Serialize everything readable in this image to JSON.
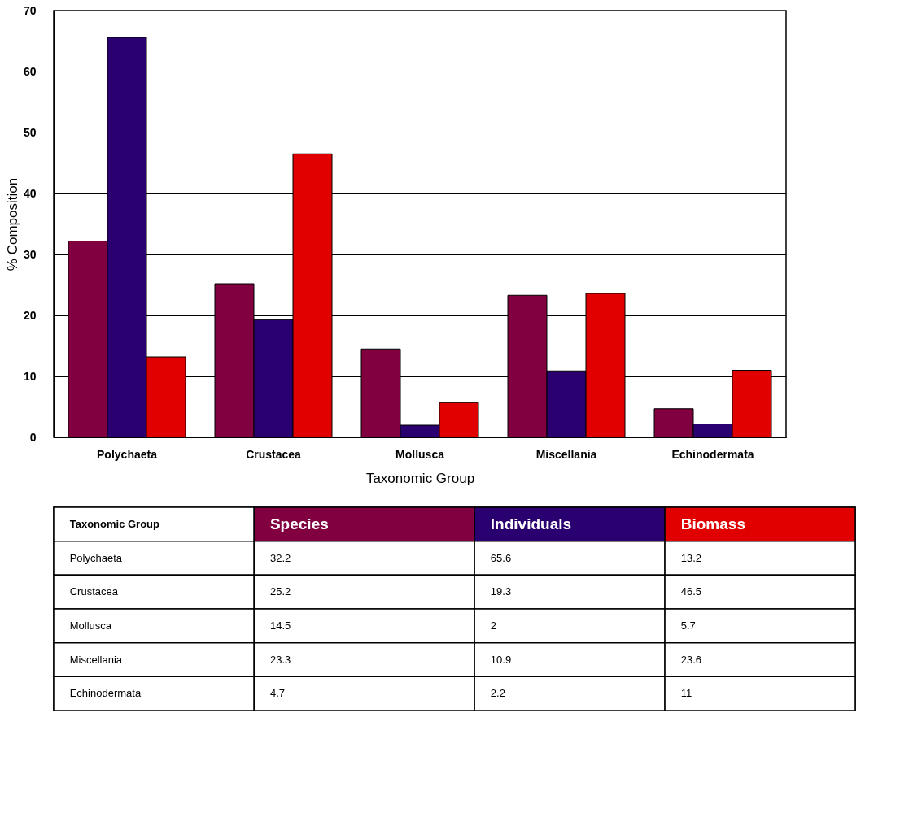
{
  "chart_data": [
    {
      "type": "bar",
      "xlabel": "Taxonomic Group",
      "ylabel": "% Composition",
      "categories": [
        "Polychaeta",
        "Crustacea",
        "Mollusca",
        "Miscellania",
        "Echinodermata"
      ],
      "series": [
        {
          "name": "Species",
          "color": "#800040",
          "values": [
            32.2,
            25.2,
            14.5,
            23.3,
            4.7
          ]
        },
        {
          "name": "Individuals",
          "color": "#2a0070",
          "values": [
            65.6,
            19.3,
            2,
            10.9,
            2.2
          ]
        },
        {
          "name": "Biomass",
          "color": "#e00000",
          "values": [
            13.2,
            46.5,
            5.7,
            23.6,
            11
          ]
        }
      ],
      "ylim": [
        0,
        70
      ],
      "yticks": [
        0,
        10,
        20,
        30,
        40,
        50,
        60,
        70
      ],
      "grid": "y",
      "legend": "bottom"
    },
    {
      "type": "other",
      "xlabel": "Taxonomic Group",
      "categories": [
        "Polychaeta",
        "Crustacea",
        "Mollusca",
        "Miscellania",
        "Echinodermata"
      ],
      "series": [
        {
          "values": [
            32.2,
            25.2,
            14.5,
            23.3,
            4.7
          ]
        },
        {
          "values": [
            65.6,
            19.3,
            2,
            10.9,
            2.2
          ]
        },
        {
          "values": [
            13.2,
            46.5,
            5.7,
            23.6,
            11
          ]
        }
      ],
      "data_labels": true
    }
  ]
}
